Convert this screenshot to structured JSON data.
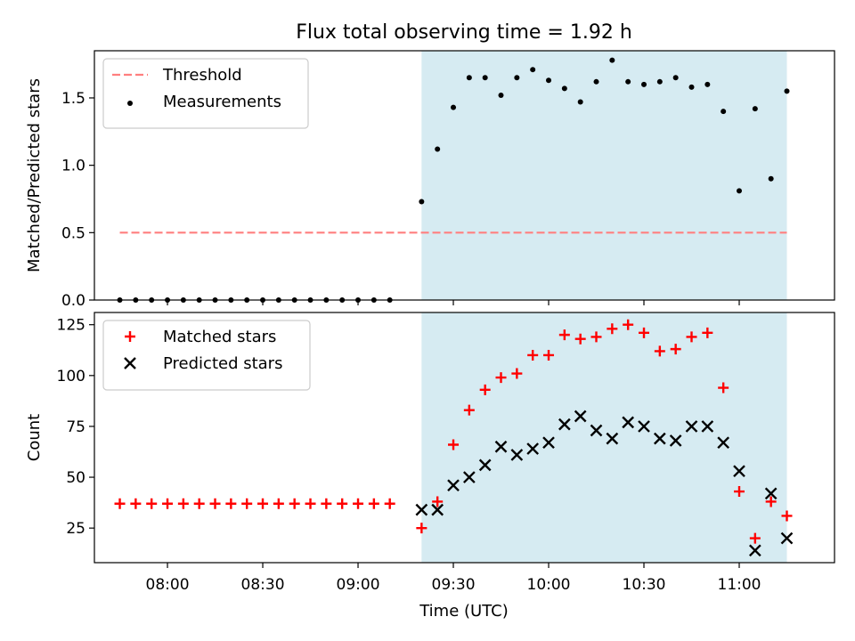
{
  "chart_data": [
    {
      "type": "scatter",
      "title": "Flux total observing time = 1.92 h",
      "xlabel": "",
      "ylabel": "Matched/Predicted stars",
      "ylim": [
        0,
        1.85
      ],
      "yticks": [
        "0.0",
        "0.5",
        "1.0",
        "1.5"
      ],
      "xticks": [
        "08:00",
        "08:30",
        "09:00",
        "09:30",
        "10:00",
        "10:30",
        "11:00"
      ],
      "legend_position": "top-left",
      "observing_window": {
        "start": "09:20",
        "end": "11:15",
        "color": "#add8e6"
      },
      "threshold": {
        "name": "Threshold",
        "value": 0.5,
        "x_start": "07:45",
        "x_end": "11:15",
        "color": "#ff7f7f"
      },
      "series": [
        {
          "name": "Measurements",
          "color": "#000000",
          "marker": "dot",
          "points": [
            [
              "07:45",
              0.0
            ],
            [
              "07:50",
              0.0
            ],
            [
              "07:55",
              0.0
            ],
            [
              "08:00",
              0.0
            ],
            [
              "08:05",
              0.0
            ],
            [
              "08:10",
              0.0
            ],
            [
              "08:15",
              0.0
            ],
            [
              "08:20",
              0.0
            ],
            [
              "08:25",
              0.0
            ],
            [
              "08:30",
              0.0
            ],
            [
              "08:35",
              0.0
            ],
            [
              "08:40",
              0.0
            ],
            [
              "08:45",
              0.0
            ],
            [
              "08:50",
              0.0
            ],
            [
              "08:55",
              0.0
            ],
            [
              "09:00",
              0.0
            ],
            [
              "09:05",
              0.0
            ],
            [
              "09:10",
              0.0
            ],
            [
              "09:20",
              0.73
            ],
            [
              "09:25",
              1.12
            ],
            [
              "09:30",
              1.43
            ],
            [
              "09:35",
              1.65
            ],
            [
              "09:40",
              1.65
            ],
            [
              "09:45",
              1.52
            ],
            [
              "09:50",
              1.65
            ],
            [
              "09:55",
              1.71
            ],
            [
              "10:00",
              1.63
            ],
            [
              "10:05",
              1.57
            ],
            [
              "10:10",
              1.47
            ],
            [
              "10:15",
              1.62
            ],
            [
              "10:20",
              1.78
            ],
            [
              "10:25",
              1.62
            ],
            [
              "10:30",
              1.6
            ],
            [
              "10:35",
              1.62
            ],
            [
              "10:40",
              1.65
            ],
            [
              "10:45",
              1.58
            ],
            [
              "10:50",
              1.6
            ],
            [
              "10:55",
              1.4
            ],
            [
              "11:00",
              0.81
            ],
            [
              "11:05",
              1.42
            ],
            [
              "11:10",
              0.9
            ],
            [
              "11:15",
              1.55
            ]
          ]
        }
      ]
    },
    {
      "type": "scatter",
      "title": "",
      "xlabel": "Time (UTC)",
      "ylabel": "Count",
      "ylim": [
        8,
        131
      ],
      "yticks": [
        "25",
        "50",
        "75",
        "100",
        "125"
      ],
      "xticks": [
        "08:00",
        "08:30",
        "09:00",
        "09:30",
        "10:00",
        "10:30",
        "11:00"
      ],
      "legend_position": "top-left",
      "observing_window": {
        "start": "09:20",
        "end": "11:15",
        "color": "#add8e6"
      },
      "series": [
        {
          "name": "Matched stars",
          "color": "#ff0000",
          "marker": "plus",
          "points": [
            [
              "07:45",
              37
            ],
            [
              "07:50",
              37
            ],
            [
              "07:55",
              37
            ],
            [
              "08:00",
              37
            ],
            [
              "08:05",
              37
            ],
            [
              "08:10",
              37
            ],
            [
              "08:15",
              37
            ],
            [
              "08:20",
              37
            ],
            [
              "08:25",
              37
            ],
            [
              "08:30",
              37
            ],
            [
              "08:35",
              37
            ],
            [
              "08:40",
              37
            ],
            [
              "08:45",
              37
            ],
            [
              "08:50",
              37
            ],
            [
              "08:55",
              37
            ],
            [
              "09:00",
              37
            ],
            [
              "09:05",
              37
            ],
            [
              "09:10",
              37
            ],
            [
              "09:20",
              25
            ],
            [
              "09:25",
              38
            ],
            [
              "09:30",
              66
            ],
            [
              "09:35",
              83
            ],
            [
              "09:40",
              93
            ],
            [
              "09:45",
              99
            ],
            [
              "09:50",
              101
            ],
            [
              "09:55",
              110
            ],
            [
              "10:00",
              110
            ],
            [
              "10:05",
              120
            ],
            [
              "10:10",
              118
            ],
            [
              "10:15",
              119
            ],
            [
              "10:20",
              123
            ],
            [
              "10:25",
              125
            ],
            [
              "10:30",
              121
            ],
            [
              "10:35",
              112
            ],
            [
              "10:40",
              113
            ],
            [
              "10:45",
              119
            ],
            [
              "10:50",
              121
            ],
            [
              "10:55",
              94
            ],
            [
              "11:00",
              43
            ],
            [
              "11:05",
              20
            ],
            [
              "11:10",
              38
            ],
            [
              "11:15",
              31
            ]
          ]
        },
        {
          "name": "Predicted stars",
          "color": "#000000",
          "marker": "x",
          "points": [
            [
              "09:20",
              34
            ],
            [
              "09:25",
              34
            ],
            [
              "09:30",
              46
            ],
            [
              "09:35",
              50
            ],
            [
              "09:40",
              56
            ],
            [
              "09:45",
              65
            ],
            [
              "09:50",
              61
            ],
            [
              "09:55",
              64
            ],
            [
              "10:00",
              67
            ],
            [
              "10:05",
              76
            ],
            [
              "10:10",
              80
            ],
            [
              "10:15",
              73
            ],
            [
              "10:20",
              69
            ],
            [
              "10:25",
              77
            ],
            [
              "10:30",
              75
            ],
            [
              "10:35",
              69
            ],
            [
              "10:40",
              68
            ],
            [
              "10:45",
              75
            ],
            [
              "10:50",
              75
            ],
            [
              "10:55",
              67
            ],
            [
              "11:00",
              53
            ],
            [
              "11:05",
              14
            ],
            [
              "11:10",
              42
            ],
            [
              "11:15",
              20
            ]
          ]
        }
      ]
    }
  ]
}
